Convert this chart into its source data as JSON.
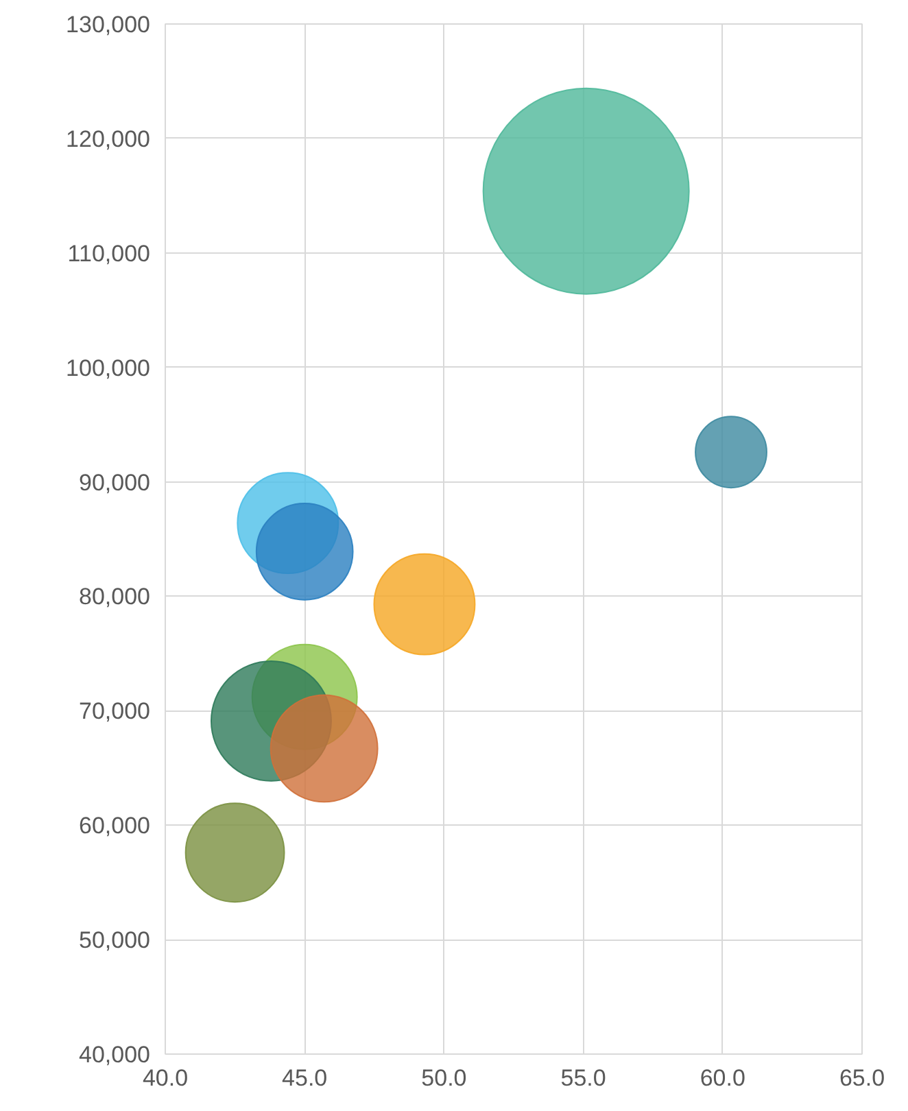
{
  "chart_data": {
    "type": "bubble",
    "x": [
      55.1,
      60.3,
      44.4,
      45.0,
      49.3,
      45.0,
      43.8,
      45.7,
      42.5
    ],
    "values": [
      115400,
      92600,
      86400,
      83900,
      79300,
      71200,
      69100,
      66700,
      57600
    ],
    "sizes": [
      1,
      0.12,
      0.24,
      0.22,
      0.24,
      0.26,
      0.34,
      0.27,
      0.23
    ],
    "colors": [
      "#4fb89a",
      "#3d8aa0",
      "#4cbfe8",
      "#2a7fc0",
      "#f5a623",
      "#8cc44a",
      "#2e7a5a",
      "#d0703a",
      "#7a9040"
    ],
    "xlim": [
      40,
      65
    ],
    "xticks": [
      {
        "value": 40,
        "label": "40.0"
      },
      {
        "value": 45,
        "label": "45.0"
      },
      {
        "value": 50,
        "label": "50.0"
      },
      {
        "value": 55,
        "label": "55.0"
      },
      {
        "value": 60,
        "label": "60.0"
      },
      {
        "value": 65,
        "label": "65.0"
      }
    ],
    "ylim": [
      40000,
      130000
    ],
    "yticks": [
      {
        "value": 40000,
        "label": "40,000"
      },
      {
        "value": 50000,
        "label": "50,000"
      },
      {
        "value": 60000,
        "label": "60,000"
      },
      {
        "value": 70000,
        "label": "70,000"
      },
      {
        "value": 80000,
        "label": "80,000"
      },
      {
        "value": 90000,
        "label": "90,000"
      },
      {
        "value": 100000,
        "label": "100,000"
      },
      {
        "value": 110000,
        "label": "110,000"
      },
      {
        "value": 120000,
        "label": "120,000"
      },
      {
        "value": 130000,
        "label": "130,000"
      }
    ],
    "grid": true
  }
}
